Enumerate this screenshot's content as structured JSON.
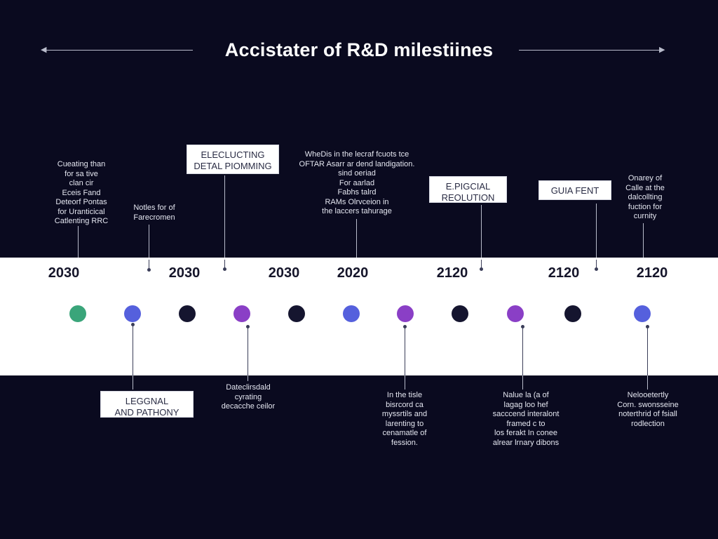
{
  "title": "Accistater of R&D milestiines",
  "years": [
    "2030",
    "2030",
    "2030",
    "2020",
    "2120",
    "2120",
    "2120"
  ],
  "colors": {
    "background": "#0a0a1f",
    "band": "#ffffff",
    "green": "#3aa57a",
    "blue": "#5560dd",
    "navy": "#15152f",
    "purple": "#8a3fc6"
  },
  "dots": [
    "green",
    "blue",
    "navy",
    "purple",
    "navy",
    "blue",
    "purple",
    "navy",
    "purple",
    "navy",
    "blue"
  ],
  "top_notes": [
    "Cueating than\nfor sa tive\nclan cir\nEceis Fand\nDeteorf Pontas\nfor Uranticical\nCatlenting RRC",
    "Notles for of\nFarecromen",
    "WheDis in the lecraf fcuots tce\nOFTAR Asarr ar dend landigation.\nsind oeriad\nFor aarlad\nFabhs talrd\nRAMs Olrvceion in\nthe laccers tahurage",
    "Onarey of\nCalle at the\ndalcollting\nfuction for\ncurnity"
  ],
  "top_boxes": [
    "ELECLUCTING\nDETAL PIOMMING",
    "E.PIGCIAL\nREOLUTION",
    "GUIA FENT"
  ],
  "bottom_box": "LEGGNAL\nAND PATHONY",
  "bottom_notes": [
    "Dateclirsdald\ncyrating\ndecacche ceilor",
    "In the tisle\nbisrcord ca\nmyssrtils and\nlarenting to\ncenamatle of\nfession.",
    "Nalue la (a of\nlagag loo hef\nsacccend interalont\nframed c to\nlos ferakt In conee\nalrear lrnary dibons",
    "Nelooetertly\nCorn. swonsseine\nnoterthrid of fsiall\nrodlection"
  ]
}
